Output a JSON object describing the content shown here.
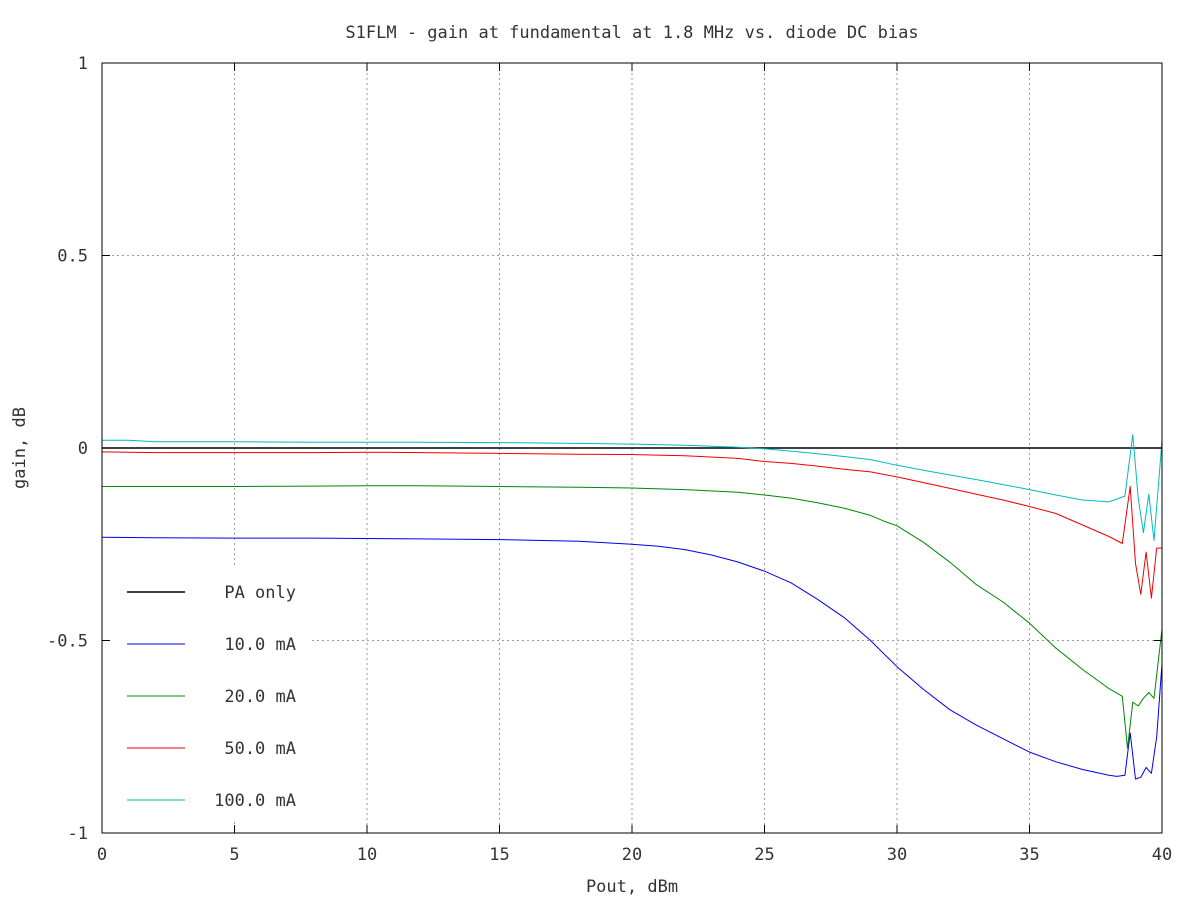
{
  "chart_data": {
    "type": "line",
    "title": "S1FLM - gain at fundamental at 1.8 MHz vs. diode DC bias",
    "xlabel": "Pout, dBm",
    "ylabel": "gain, dB",
    "xlim": [
      0,
      40
    ],
    "ylim": [
      -1,
      1
    ],
    "xticks": [
      0,
      5,
      10,
      15,
      20,
      25,
      30,
      35,
      40
    ],
    "yticks": [
      1,
      0.5,
      0,
      -0.5,
      -1
    ],
    "xtick_labels": [
      "0",
      "5",
      "10",
      "15",
      "20",
      "25",
      "30",
      "35",
      "40"
    ],
    "ytick_labels": [
      "1",
      "0.5",
      "0",
      "-0.5",
      "-1"
    ],
    "grid": true,
    "legend_position": "bottom-left",
    "series": [
      {
        "name": "PA only",
        "color": "#000000",
        "points": [
          [
            0,
            0
          ],
          [
            40,
            0
          ]
        ]
      },
      {
        "name": "10.0 mA",
        "color": "#0000ee",
        "points": [
          [
            0,
            -0.232
          ],
          [
            2,
            -0.233
          ],
          [
            5,
            -0.234
          ],
          [
            8,
            -0.234
          ],
          [
            10,
            -0.235
          ],
          [
            12,
            -0.236
          ],
          [
            15,
            -0.238
          ],
          [
            18,
            -0.242
          ],
          [
            20,
            -0.25
          ],
          [
            21,
            -0.255
          ],
          [
            22,
            -0.264
          ],
          [
            23,
            -0.278
          ],
          [
            24,
            -0.296
          ],
          [
            25,
            -0.32
          ],
          [
            26,
            -0.35
          ],
          [
            27,
            -0.393
          ],
          [
            28,
            -0.44
          ],
          [
            29,
            -0.5
          ],
          [
            30,
            -0.568
          ],
          [
            31,
            -0.627
          ],
          [
            32,
            -0.68
          ],
          [
            33,
            -0.72
          ],
          [
            34,
            -0.755
          ],
          [
            35,
            -0.79
          ],
          [
            36,
            -0.815
          ],
          [
            37,
            -0.835
          ],
          [
            38,
            -0.85
          ],
          [
            38.3,
            -0.853
          ],
          [
            38.6,
            -0.85
          ],
          [
            38.8,
            -0.74
          ],
          [
            39.0,
            -0.86
          ],
          [
            39.2,
            -0.855
          ],
          [
            39.4,
            -0.83
          ],
          [
            39.6,
            -0.845
          ],
          [
            39.8,
            -0.75
          ],
          [
            40.0,
            -0.56
          ]
        ]
      },
      {
        "name": "20.0 mA",
        "color": "#008800",
        "points": [
          [
            0,
            -0.1
          ],
          [
            2,
            -0.1
          ],
          [
            5,
            -0.1
          ],
          [
            8,
            -0.099
          ],
          [
            10,
            -0.098
          ],
          [
            12,
            -0.098
          ],
          [
            15,
            -0.1
          ],
          [
            18,
            -0.102
          ],
          [
            20,
            -0.104
          ],
          [
            22,
            -0.108
          ],
          [
            24,
            -0.115
          ],
          [
            25,
            -0.122
          ],
          [
            26,
            -0.13
          ],
          [
            27,
            -0.142
          ],
          [
            28,
            -0.156
          ],
          [
            29,
            -0.175
          ],
          [
            29.5,
            -0.19
          ],
          [
            30,
            -0.202
          ],
          [
            31,
            -0.245
          ],
          [
            32,
            -0.297
          ],
          [
            33,
            -0.355
          ],
          [
            34,
            -0.4
          ],
          [
            35,
            -0.455
          ],
          [
            36,
            -0.52
          ],
          [
            37,
            -0.575
          ],
          [
            38,
            -0.625
          ],
          [
            38.5,
            -0.645
          ],
          [
            38.7,
            -0.78
          ],
          [
            38.9,
            -0.66
          ],
          [
            39.1,
            -0.67
          ],
          [
            39.3,
            -0.65
          ],
          [
            39.5,
            -0.635
          ],
          [
            39.7,
            -0.65
          ],
          [
            40.0,
            -0.47
          ]
        ]
      },
      {
        "name": "50.0 mA",
        "color": "#ee0000",
        "points": [
          [
            0,
            -0.01
          ],
          [
            2,
            -0.012
          ],
          [
            5,
            -0.012
          ],
          [
            8,
            -0.012
          ],
          [
            10,
            -0.011
          ],
          [
            12,
            -0.012
          ],
          [
            15,
            -0.014
          ],
          [
            18,
            -0.016
          ],
          [
            20,
            -0.017
          ],
          [
            22,
            -0.02
          ],
          [
            24,
            -0.027
          ],
          [
            25,
            -0.035
          ],
          [
            26,
            -0.04
          ],
          [
            27,
            -0.047
          ],
          [
            28,
            -0.055
          ],
          [
            29,
            -0.062
          ],
          [
            30,
            -0.075
          ],
          [
            31,
            -0.09
          ],
          [
            32,
            -0.105
          ],
          [
            33,
            -0.12
          ],
          [
            34,
            -0.135
          ],
          [
            35,
            -0.152
          ],
          [
            36,
            -0.17
          ],
          [
            37,
            -0.2
          ],
          [
            38,
            -0.23
          ],
          [
            38.5,
            -0.248
          ],
          [
            38.8,
            -0.1
          ],
          [
            39.0,
            -0.3
          ],
          [
            39.2,
            -0.38
          ],
          [
            39.4,
            -0.27
          ],
          [
            39.6,
            -0.39
          ],
          [
            39.8,
            -0.26
          ],
          [
            40.0,
            -0.26
          ]
        ]
      },
      {
        "name": "100.0 mA",
        "color": "#00bbbb",
        "points": [
          [
            0,
            0.02
          ],
          [
            1,
            0.02
          ],
          [
            2,
            0.016
          ],
          [
            5,
            0.016
          ],
          [
            8,
            0.015
          ],
          [
            10,
            0.015
          ],
          [
            12,
            0.015
          ],
          [
            15,
            0.014
          ],
          [
            18,
            0.012
          ],
          [
            20,
            0.01
          ],
          [
            22,
            0.007
          ],
          [
            24,
            0.002
          ],
          [
            25,
            -0.002
          ],
          [
            26,
            -0.008
          ],
          [
            27,
            -0.015
          ],
          [
            28,
            -0.022
          ],
          [
            29,
            -0.03
          ],
          [
            30,
            -0.045
          ],
          [
            31,
            -0.058
          ],
          [
            32,
            -0.07
          ],
          [
            33,
            -0.082
          ],
          [
            34,
            -0.095
          ],
          [
            35,
            -0.108
          ],
          [
            36,
            -0.122
          ],
          [
            37,
            -0.135
          ],
          [
            38,
            -0.14
          ],
          [
            38.6,
            -0.125
          ],
          [
            38.9,
            0.035
          ],
          [
            39.1,
            -0.13
          ],
          [
            39.3,
            -0.22
          ],
          [
            39.5,
            -0.12
          ],
          [
            39.7,
            -0.24
          ],
          [
            40.0,
            0.02
          ]
        ]
      }
    ]
  }
}
